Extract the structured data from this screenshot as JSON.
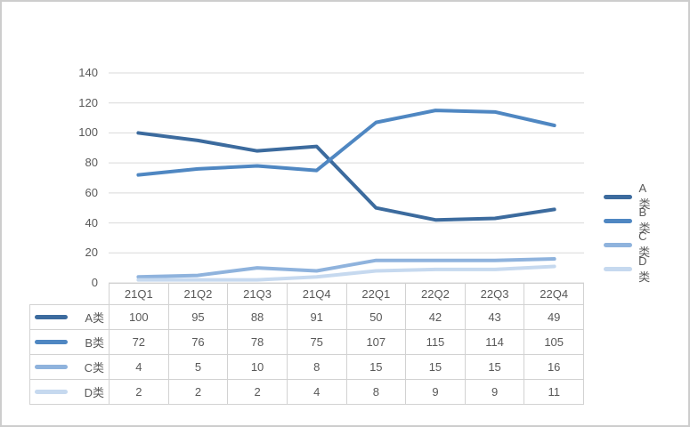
{
  "chart_data": {
    "type": "line",
    "title": "",
    "xlabel": "",
    "ylabel": "",
    "categories": [
      "21Q1",
      "21Q2",
      "21Q3",
      "21Q4",
      "22Q1",
      "22Q2",
      "22Q3",
      "22Q4"
    ],
    "series": [
      {
        "name": "A类",
        "color": "#3c6b9e",
        "values": [
          100,
          95,
          88,
          91,
          50,
          42,
          43,
          49
        ]
      },
      {
        "name": "B类",
        "color": "#4f87c2",
        "values": [
          72,
          76,
          78,
          75,
          107,
          115,
          114,
          105
        ]
      },
      {
        "name": "C类",
        "color": "#8fb3dd",
        "values": [
          4,
          5,
          10,
          8,
          15,
          15,
          15,
          16
        ]
      },
      {
        "name": "D类",
        "color": "#c6d9ef",
        "values": [
          2,
          2,
          2,
          4,
          8,
          9,
          9,
          11
        ]
      }
    ],
    "ylim": [
      0,
      140
    ],
    "yticks": [
      140,
      120,
      100,
      80,
      60,
      40,
      20,
      0
    ],
    "grid": true,
    "legend_position": "right",
    "has_data_table": true
  },
  "styles": {
    "background": "#ffffff",
    "frame_border_color": "#cdcdcd",
    "grid_color": "#d9d9d9",
    "table_border_color": "#d2d2d2",
    "text_color": "#595959"
  }
}
